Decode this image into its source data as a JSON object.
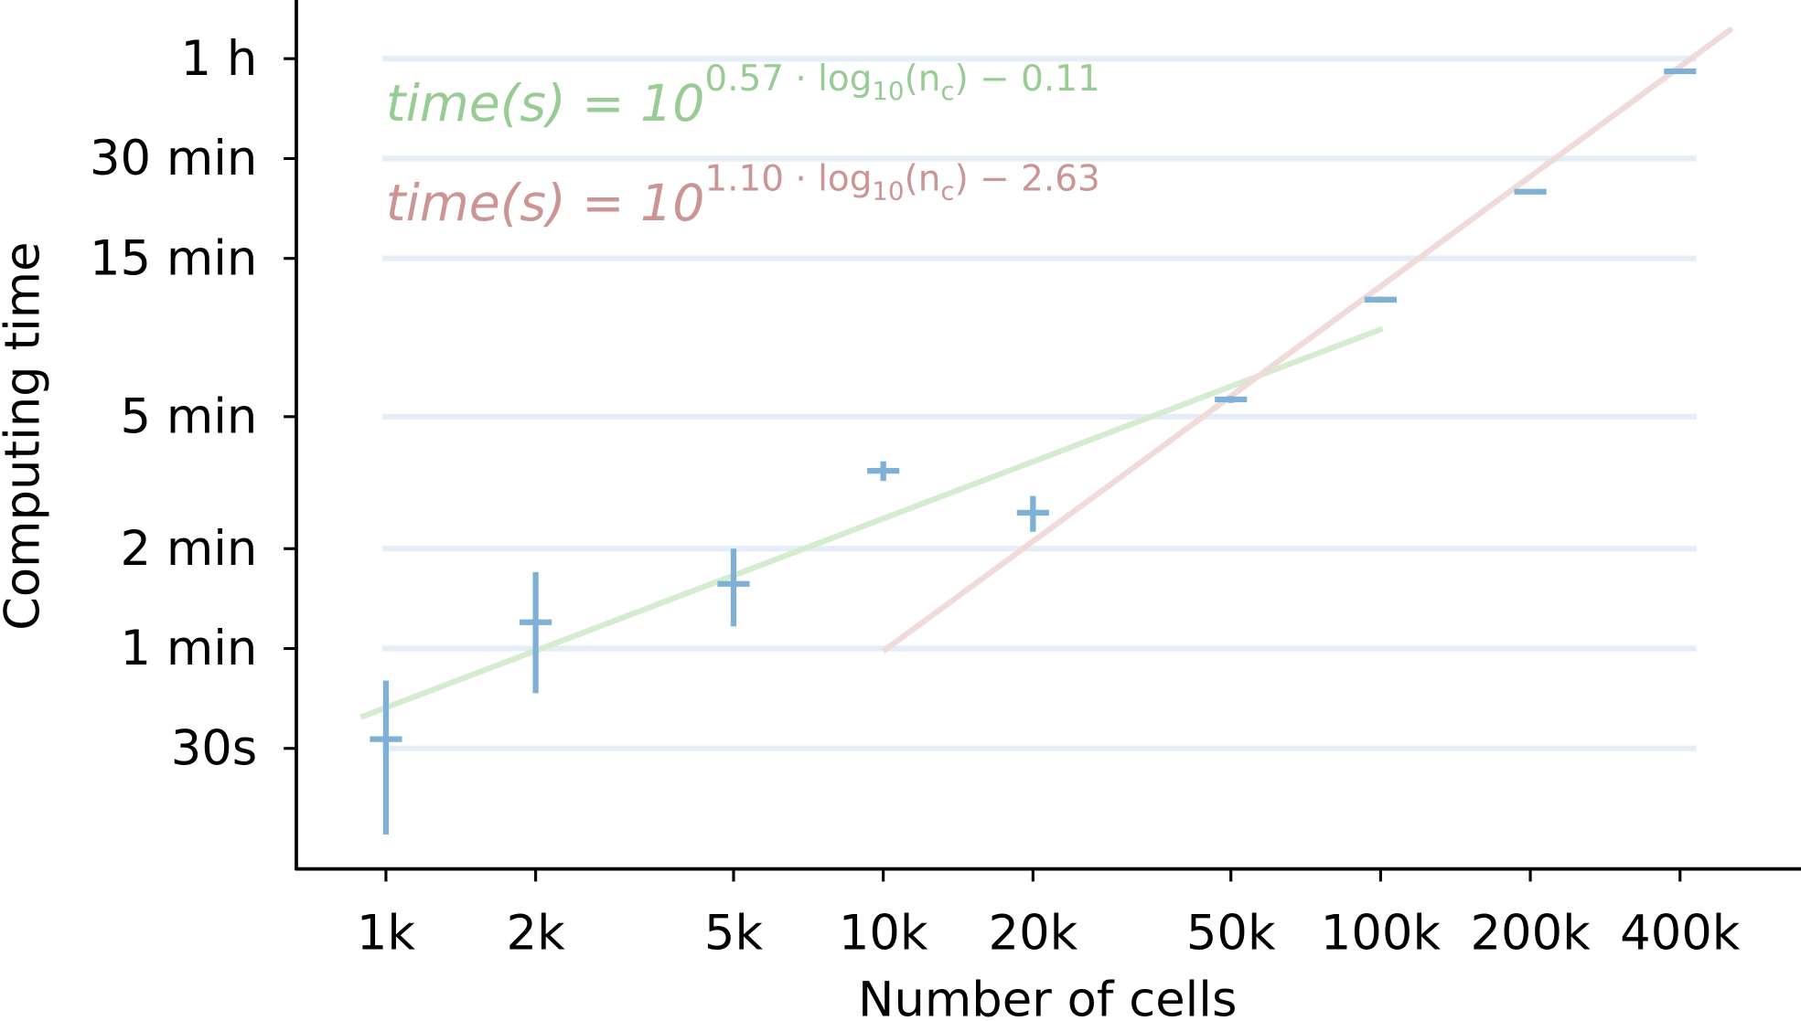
{
  "chart_data": {
    "type": "scatter",
    "title": "",
    "xlabel": "Number of cells",
    "ylabel": "Computing time",
    "xscale": "log",
    "yscale": "log",
    "xlim": [
      660,
      700000
    ],
    "ylim": [
      13,
      5400
    ],
    "grid": "horizontal at y ticks",
    "x_ticks": [
      {
        "value": 1000,
        "label": "1k"
      },
      {
        "value": 2000,
        "label": "2k"
      },
      {
        "value": 5000,
        "label": "5k"
      },
      {
        "value": 10000,
        "label": "10k"
      },
      {
        "value": 20000,
        "label": "20k"
      },
      {
        "value": 50000,
        "label": "50k"
      },
      {
        "value": 100000,
        "label": "100k"
      },
      {
        "value": 200000,
        "label": "200k"
      },
      {
        "value": 400000,
        "label": "400k"
      }
    ],
    "y_ticks": [
      {
        "value": 3600,
        "label": "1 h"
      },
      {
        "value": 1800,
        "label": "30 min"
      },
      {
        "value": 900,
        "label": "15 min"
      },
      {
        "value": 300,
        "label": "5 min"
      },
      {
        "value": 120,
        "label": "2 min"
      },
      {
        "value": 60,
        "label": "1 min"
      },
      {
        "value": 30,
        "label": "30s"
      }
    ],
    "points": [
      {
        "x": 1000,
        "y": 32,
        "ylow": 16.5,
        "yhigh": 48
      },
      {
        "x": 2000,
        "y": 72,
        "ylow": 44,
        "yhigh": 102
      },
      {
        "x": 5000,
        "y": 94,
        "ylow": 70,
        "yhigh": 120
      },
      {
        "x": 10000,
        "y": 206,
        "ylow": 192,
        "yhigh": 220
      },
      {
        "x": 20000,
        "y": 154,
        "ylow": 135,
        "yhigh": 173
      },
      {
        "x": 50000,
        "y": 338,
        "ylow": 330,
        "yhigh": 346
      },
      {
        "x": 100000,
        "y": 676,
        "ylow": 662,
        "yhigh": 690
      },
      {
        "x": 200000,
        "y": 1430,
        "ylow": 1410,
        "yhigh": 1450
      },
      {
        "x": 400000,
        "y": 3298,
        "ylow": 3240,
        "yhigh": 3350
      }
    ],
    "fits": [
      {
        "slope": 0.57,
        "intercept": -0.11,
        "x_range": [
          890,
          101000
        ],
        "color": "#d6ecd1",
        "label": {
          "main": "time(s) = 10",
          "a": "0.57 · log",
          "s1": "10",
          "b": "(n",
          "s2": "c",
          "c": ") − 0.11"
        },
        "label_color": "#99cc95"
      },
      {
        "slope": 1.1,
        "intercept": -2.63,
        "x_range": [
          10000,
          509000
        ],
        "color": "#f0dada",
        "label": {
          "main": "time(s) = 10",
          "a": "1.10 · log",
          "s1": "10",
          "b": "(n",
          "s2": "c",
          "c": ") − 2.63"
        },
        "label_color": "#cc9595"
      }
    ],
    "colors": {
      "points": "#7fb1d6",
      "grid": "#e5eef6",
      "axis": "#000000"
    }
  }
}
